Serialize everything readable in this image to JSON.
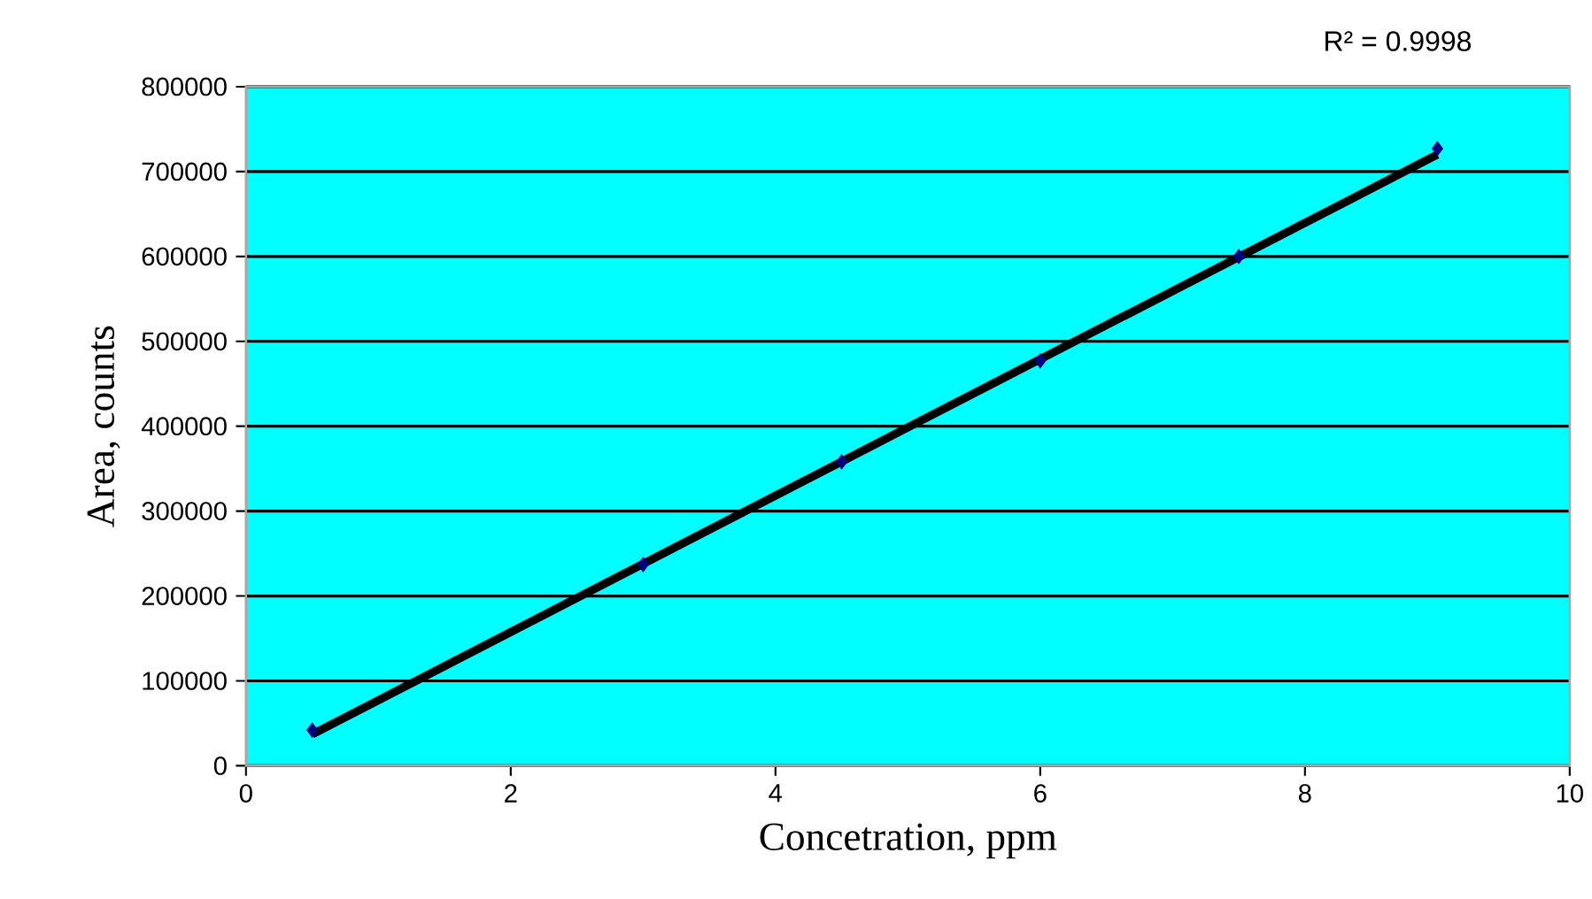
{
  "chart_data": {
    "type": "scatter",
    "xlabel": "Concetration, ppm",
    "ylabel": "Area, counts",
    "annotations": [
      "R² = 0.9998"
    ],
    "xlim": [
      0,
      10
    ],
    "xticks": [
      0,
      2,
      4,
      6,
      8,
      10
    ],
    "ylim": [
      0,
      800000
    ],
    "yticks": [
      0,
      100000,
      200000,
      300000,
      400000,
      500000,
      600000,
      700000,
      800000
    ],
    "grid": "y",
    "series": [
      {
        "type": "line",
        "color": "#000000",
        "marker": "none",
        "x": [
          0.5,
          9
        ],
        "values": [
          37000,
          720000
        ]
      },
      {
        "color": "#000080",
        "marker": "diamond",
        "x": [
          0.5,
          3,
          4.5,
          6,
          7.5,
          9
        ],
        "values": [
          42000,
          237000,
          358000,
          477000,
          600000,
          727000
        ]
      }
    ]
  }
}
